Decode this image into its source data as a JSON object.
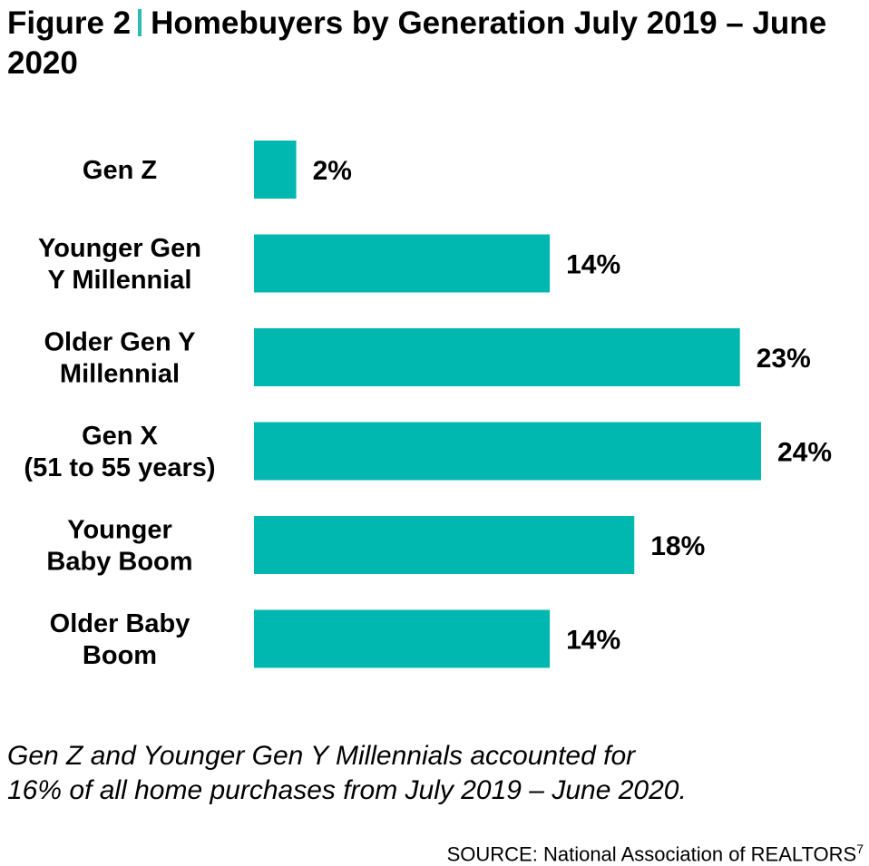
{
  "chart_data": {
    "type": "bar",
    "orientation": "horizontal",
    "figure_label": "Figure 2",
    "title": "Homebuyers by Generation July 2019 – June 2020",
    "categories": [
      [
        "Gen Z"
      ],
      [
        "Younger Gen",
        "Y Millennial"
      ],
      [
        "Older Gen Y",
        "Millennial"
      ],
      [
        "Gen X",
        "(51 to 55 years)"
      ],
      [
        "Younger",
        "Baby Boom"
      ],
      [
        "Older Baby",
        "Boom"
      ]
    ],
    "values": [
      2,
      14,
      23,
      24,
      18,
      14
    ],
    "value_labels": [
      "2%",
      "14%",
      "23%",
      "24%",
      "18%",
      "14%"
    ],
    "unit": "%",
    "xlim": [
      0,
      24
    ],
    "grid": false,
    "bar_color": "#00b8b0",
    "accent_color": "#2bbdb5"
  },
  "caption_lines": [
    "Gen Z and Younger Gen Y Millennials accounted for",
    "16% of all home purchases from July 2019 – June 2020."
  ],
  "source": "SOURCE: National Association of REALTORS",
  "source_note": "7"
}
